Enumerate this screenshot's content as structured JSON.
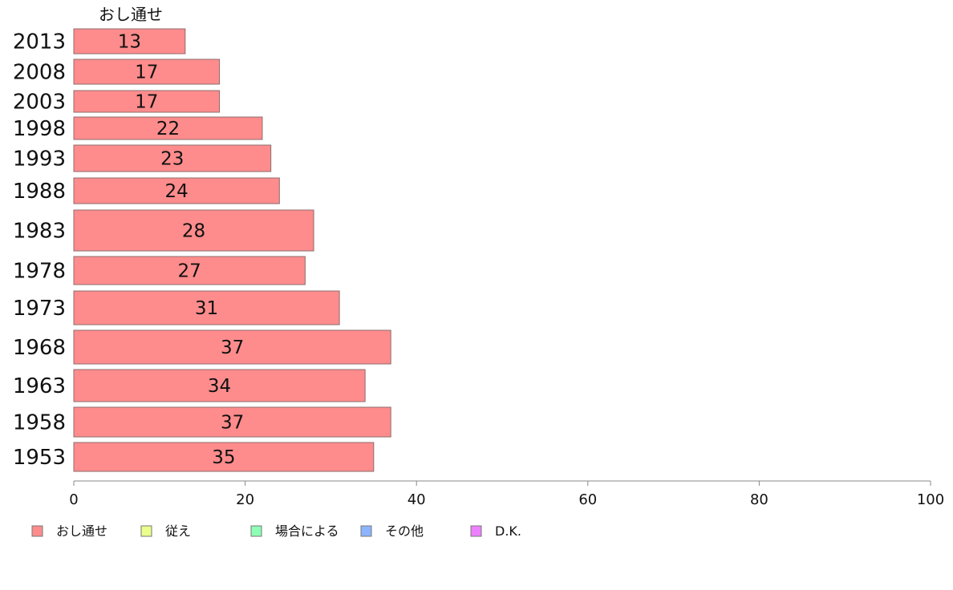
{
  "chart_data": {
    "type": "bar",
    "orientation": "horizontal",
    "series_header": "おし通せ",
    "categories": [
      "2013",
      "2008",
      "2003",
      "1998",
      "1993",
      "1988",
      "1983",
      "1978",
      "1973",
      "1968",
      "1963",
      "1958",
      "1953"
    ],
    "values": [
      13,
      17,
      17,
      22,
      23,
      24,
      28,
      27,
      31,
      37,
      34,
      37,
      35
    ],
    "xlim": [
      0,
      100
    ],
    "xticks": [
      "0",
      "20",
      "40",
      "60",
      "80",
      "100"
    ],
    "legend": [
      {
        "label": "おし通せ",
        "color": "#ff8c8c"
      },
      {
        "label": "従え",
        "color": "#eaff8c"
      },
      {
        "label": "場合による",
        "color": "#8cffb4"
      },
      {
        "label": "その他",
        "color": "#8cb4ff"
      },
      {
        "label": "D.K.",
        "color": "#ee80ff"
      }
    ],
    "legend_position": "bottom-left",
    "grid": false
  }
}
